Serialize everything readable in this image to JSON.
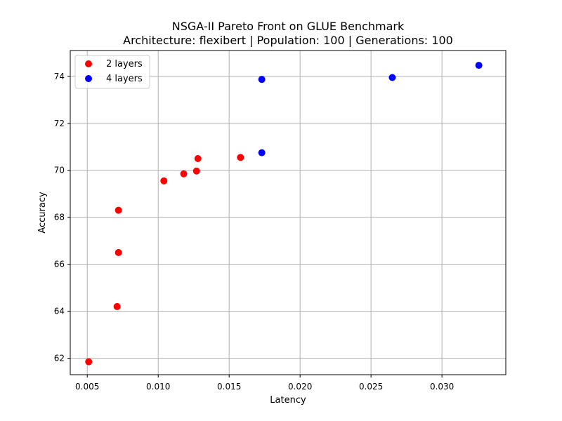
{
  "chart_data": {
    "type": "scatter",
    "title": "NSGA-II Pareto Front on GLUE Benchmark",
    "subtitle": "Architecture: flexibert | Population: 100 | Generations: 100",
    "xlabel": "Latency",
    "ylabel": "Accuracy",
    "xlim": [
      0.0038,
      0.0345
    ],
    "ylim": [
      61.3,
      75.1
    ],
    "xticks": [
      0.005,
      0.01,
      0.015,
      0.02,
      0.025,
      0.03
    ],
    "xtick_labels": [
      "0.005",
      "0.010",
      "0.015",
      "0.020",
      "0.025",
      "0.030"
    ],
    "yticks": [
      62,
      64,
      66,
      68,
      70,
      72,
      74
    ],
    "ytick_labels": [
      "62",
      "64",
      "66",
      "68",
      "70",
      "72",
      "74"
    ],
    "grid": true,
    "legend_position": "top-left",
    "series": [
      {
        "name": "2 layers",
        "color": "#ff0000",
        "points": [
          {
            "x": 0.0051,
            "y": 61.85
          },
          {
            "x": 0.0071,
            "y": 64.2
          },
          {
            "x": 0.0072,
            "y": 66.5
          },
          {
            "x": 0.0072,
            "y": 68.3
          },
          {
            "x": 0.0104,
            "y": 69.55
          },
          {
            "x": 0.0118,
            "y": 69.85
          },
          {
            "x": 0.0127,
            "y": 69.97
          },
          {
            "x": 0.0128,
            "y": 70.5
          },
          {
            "x": 0.0158,
            "y": 70.55
          }
        ]
      },
      {
        "name": "4 layers",
        "color": "#0000ff",
        "points": [
          {
            "x": 0.0173,
            "y": 70.75
          },
          {
            "x": 0.0173,
            "y": 73.87
          },
          {
            "x": 0.0265,
            "y": 73.95
          },
          {
            "x": 0.0326,
            "y": 74.47
          }
        ]
      }
    ]
  }
}
